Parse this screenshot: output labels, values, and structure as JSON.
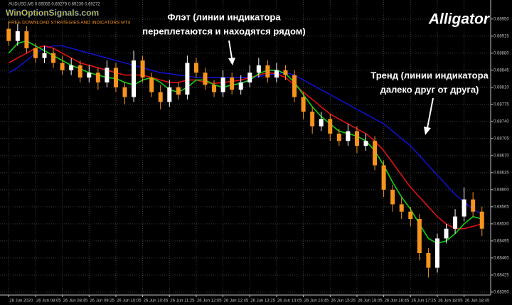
{
  "chart_data": {
    "type": "candlestick",
    "title": "Alligator",
    "subtitle": "AUDUSD,M5  0.69055 0.69279 0.69239 0.69272",
    "watermark": {
      "site": "WinOptionSignals.com",
      "tagline": "FREE DOWNLOAD STRATEGIES AND INDICATORS MT4"
    },
    "annotations": [
      {
        "lines": [
          "Флэт (линии индикатора",
          "переплетаются и находятся рядом)"
        ]
      },
      {
        "lines": [
          "Тренд (линии индикатора",
          "далеко друг от друга)"
        ]
      }
    ],
    "categories": [
      "26 Jun 2020",
      null,
      null,
      "26 Jun 08:05",
      null,
      null,
      "26 Jun 08:45",
      null,
      null,
      "26 Jun 09:25",
      null,
      null,
      "26 Jun 10:05",
      null,
      null,
      "26 Jun 10:45",
      null,
      null,
      "26 Jun 11:25",
      null,
      null,
      "26 Jun 12:05",
      null,
      null,
      "26 Jun 12:45",
      null,
      null,
      "26 Jun 13:25",
      null,
      null,
      "26 Jun 14:05",
      null,
      null,
      "26 Jun 14:45",
      null,
      null,
      "26 Jun 15:25",
      null,
      null,
      "26 Jun 16:05",
      null,
      null,
      "26 Jun 16:45",
      null,
      null,
      "26 Jun 17:25",
      null,
      null,
      "26 Jun 18:05",
      null,
      null,
      "26 Jun 18:45",
      null,
      null
    ],
    "open": [
      0.6893,
      0.68905,
      0.68925,
      0.6889,
      0.6887,
      0.6888,
      0.6886,
      0.68845,
      0.68855,
      0.6883,
      0.6884,
      0.6882,
      0.6885,
      0.6881,
      0.6879,
      0.68865,
      0.6883,
      0.688,
      0.6878,
      0.6881,
      0.68795,
      0.6886,
      0.6884,
      0.68815,
      0.688,
      0.6883,
      0.68805,
      0.6882,
      0.6884,
      0.68855,
      0.6883,
      0.68845,
      0.68835,
      0.6879,
      0.6876,
      0.6873,
      0.68745,
      0.68715,
      0.687,
      0.6872,
      0.6869,
      0.687,
      0.6865,
      0.686,
      0.6857,
      0.68555,
      0.6854,
      0.6847,
      0.6844,
      0.685,
      0.6852,
      0.68545,
      0.6858,
      0.68555
    ],
    "high": [
      0.68945,
      0.6894,
      0.68935,
      0.689,
      0.68895,
      0.6889,
      0.68875,
      0.6887,
      0.68865,
      0.68855,
      0.6885,
      0.68865,
      0.6886,
      0.6882,
      0.68885,
      0.68875,
      0.6884,
      0.68815,
      0.68825,
      0.6882,
      0.68875,
      0.6887,
      0.6885,
      0.68825,
      0.68845,
      0.6884,
      0.68835,
      0.68855,
      0.6887,
      0.68865,
      0.6886,
      0.68855,
      0.68845,
      0.688,
      0.6877,
      0.6876,
      0.68755,
      0.68725,
      0.68735,
      0.6873,
      0.68715,
      0.6871,
      0.6866,
      0.6861,
      0.68585,
      0.68565,
      0.6855,
      0.6848,
      0.6851,
      0.6853,
      0.6856,
      0.68605,
      0.68595,
      0.68565
    ],
    "low": [
      0.68895,
      0.68895,
      0.6888,
      0.6886,
      0.6886,
      0.6885,
      0.68835,
      0.68835,
      0.6882,
      0.6882,
      0.68805,
      0.6881,
      0.688,
      0.68775,
      0.6878,
      0.6882,
      0.6879,
      0.68765,
      0.6877,
      0.68785,
      0.68785,
      0.6883,
      0.68805,
      0.6879,
      0.6879,
      0.68795,
      0.68795,
      0.6881,
      0.6883,
      0.6882,
      0.6882,
      0.68825,
      0.6878,
      0.68745,
      0.68715,
      0.6872,
      0.687,
      0.6869,
      0.6869,
      0.68675,
      0.6868,
      0.6864,
      0.68585,
      0.68555,
      0.6854,
      0.68525,
      0.68455,
      0.6842,
      0.6843,
      0.6849,
      0.6851,
      0.68535,
      0.68545,
      0.68505
    ],
    "close": [
      0.68905,
      0.68925,
      0.6889,
      0.6887,
      0.6888,
      0.6886,
      0.68845,
      0.68855,
      0.6883,
      0.6884,
      0.6882,
      0.6885,
      0.6881,
      0.6879,
      0.68865,
      0.6883,
      0.688,
      0.6878,
      0.6881,
      0.68795,
      0.6886,
      0.6884,
      0.68815,
      0.688,
      0.6883,
      0.68805,
      0.6882,
      0.6884,
      0.68855,
      0.6883,
      0.68845,
      0.68835,
      0.6879,
      0.6876,
      0.6873,
      0.68745,
      0.68715,
      0.687,
      0.6872,
      0.6869,
      0.687,
      0.6865,
      0.686,
      0.6857,
      0.68555,
      0.6854,
      0.6847,
      0.6844,
      0.685,
      0.6852,
      0.68545,
      0.6858,
      0.68555,
      0.6852
    ],
    "up_color": "#ffffff",
    "down_color": "#f7941d",
    "series": [
      {
        "color": "#1010c8",
        "values": [
          0.6884,
          0.6885,
          0.68865,
          0.6888,
          0.6889,
          0.68895,
          0.68895,
          0.6889,
          0.68885,
          0.6888,
          0.68875,
          0.6887,
          0.68865,
          0.6886,
          0.68855,
          0.6885,
          0.68845,
          0.6884,
          0.68838,
          0.68835,
          0.68833,
          0.6883,
          0.6883,
          0.6883,
          0.6883,
          0.6883,
          0.6883,
          0.6883,
          0.68832,
          0.68835,
          0.68838,
          0.6884,
          0.68835,
          0.68825,
          0.68815,
          0.68805,
          0.68795,
          0.68785,
          0.68775,
          0.68765,
          0.68755,
          0.68745,
          0.68735,
          0.6872,
          0.68705,
          0.6869,
          0.6867,
          0.6865,
          0.6863,
          0.6861,
          0.6859,
          0.68575,
          0.6856,
          0.6855
        ]
      },
      {
        "color": "#e01010",
        "values": [
          0.6886,
          0.6887,
          0.6888,
          0.6889,
          0.68895,
          0.6889,
          0.6888,
          0.6887,
          0.6886,
          0.68855,
          0.6885,
          0.68845,
          0.6884,
          0.68835,
          0.68835,
          0.68835,
          0.6883,
          0.68825,
          0.6882,
          0.6882,
          0.68825,
          0.68825,
          0.6882,
          0.68818,
          0.6882,
          0.68822,
          0.68825,
          0.6883,
          0.68835,
          0.6884,
          0.68838,
          0.6883,
          0.68815,
          0.688,
          0.68785,
          0.6877,
          0.68755,
          0.68745,
          0.68735,
          0.68725,
          0.68715,
          0.687,
          0.6868,
          0.68655,
          0.6863,
          0.68605,
          0.68585,
          0.68565,
          0.68545,
          0.6853,
          0.6852,
          0.6852,
          0.68525,
          0.6853
        ]
      },
      {
        "color": "#10d010",
        "values": [
          0.6888,
          0.689,
          0.68905,
          0.68895,
          0.68885,
          0.68875,
          0.68865,
          0.68855,
          0.68848,
          0.6884,
          0.68835,
          0.6883,
          0.68828,
          0.6882,
          0.68815,
          0.68825,
          0.6883,
          0.6882,
          0.68805,
          0.688,
          0.6881,
          0.68825,
          0.68825,
          0.68815,
          0.6881,
          0.68815,
          0.68818,
          0.68825,
          0.68838,
          0.68845,
          0.68845,
          0.68838,
          0.6882,
          0.68795,
          0.6877,
          0.6875,
          0.68735,
          0.6872,
          0.68715,
          0.6871,
          0.687,
          0.6868,
          0.6865,
          0.68615,
          0.68585,
          0.6856,
          0.6853,
          0.685,
          0.6849,
          0.68495,
          0.6851,
          0.6853,
          0.68545,
          0.6854
        ]
      }
    ],
    "ylim": [
      0.68384,
      0.68989
    ],
    "yticks": [
      {
        "value": 0.6895,
        "label": "0.68950"
      },
      {
        "value": 0.68915,
        "label": "0.68915"
      },
      {
        "value": 0.6888,
        "label": "0.68880"
      },
      {
        "value": 0.68845,
        "label": "0.68845"
      },
      {
        "value": 0.6881,
        "label": "0.68810"
      },
      {
        "value": 0.68775,
        "label": "0.68775"
      },
      {
        "value": 0.6874,
        "label": "0.68740"
      },
      {
        "value": 0.68705,
        "label": "0.68705"
      },
      {
        "value": 0.6867,
        "label": "0.68670"
      },
      {
        "value": 0.68635,
        "label": "0.68635"
      },
      {
        "value": 0.686,
        "label": "0.68600"
      },
      {
        "value": 0.68565,
        "label": "0.68565"
      },
      {
        "value": 0.6853,
        "label": "0.68530"
      },
      {
        "value": 0.68495,
        "label": "0.68495"
      },
      {
        "value": 0.6846,
        "label": "0.68460"
      },
      {
        "value": 0.68425,
        "label": "0.68425"
      },
      {
        "value": 0.6839,
        "label": "0.68390"
      }
    ],
    "grid": true
  }
}
